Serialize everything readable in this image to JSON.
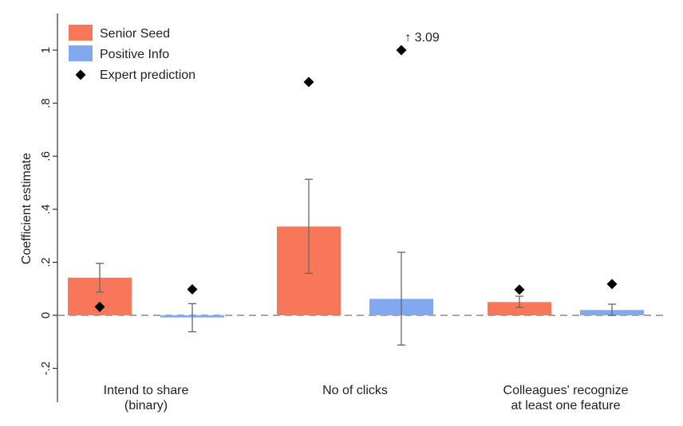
{
  "chart_data": {
    "type": "bar",
    "title": "",
    "xlabel": "",
    "ylabel": "Coefficient estimate",
    "ylim": [
      -0.3,
      1.13
    ],
    "yticks": [
      {
        "value": -0.2,
        "label": "-.2"
      },
      {
        "value": 0,
        "label": "0"
      },
      {
        "value": 0.2,
        "label": ".2"
      },
      {
        "value": 0.4,
        "label": ".4"
      },
      {
        "value": 0.6,
        "label": ".6"
      },
      {
        "value": 0.8,
        "label": ".8"
      },
      {
        "value": 1,
        "label": "1"
      }
    ],
    "categories": [
      [
        "Intend to share",
        "(binary)"
      ],
      [
        "No of clicks"
      ],
      [
        "Colleagues' recognize",
        "at least one feature"
      ]
    ],
    "series": [
      {
        "name": "Senior Seed",
        "color": "#f8775a",
        "values": [
          0.142,
          0.335,
          0.05
        ],
        "ci_low": [
          0.088,
          0.158,
          0.03
        ],
        "ci_high": [
          0.196,
          0.513,
          0.072
        ],
        "expert": [
          0.032,
          0.88,
          0.097
        ]
      },
      {
        "name": "Positive Info",
        "color": "#82a8f0",
        "values": [
          -0.008,
          0.062,
          0.02
        ],
        "ci_low": [
          -0.062,
          -0.112,
          0.0
        ],
        "ci_high": [
          0.044,
          0.238,
          0.042
        ],
        "expert": [
          0.098,
          1.0,
          0.118
        ]
      }
    ],
    "expert_legend": "Expert prediction",
    "annotation": {
      "text": "↑ 3.09",
      "category": 1,
      "series": 1
    },
    "zero_line": true,
    "grid": false,
    "legend_position": "top-left"
  }
}
